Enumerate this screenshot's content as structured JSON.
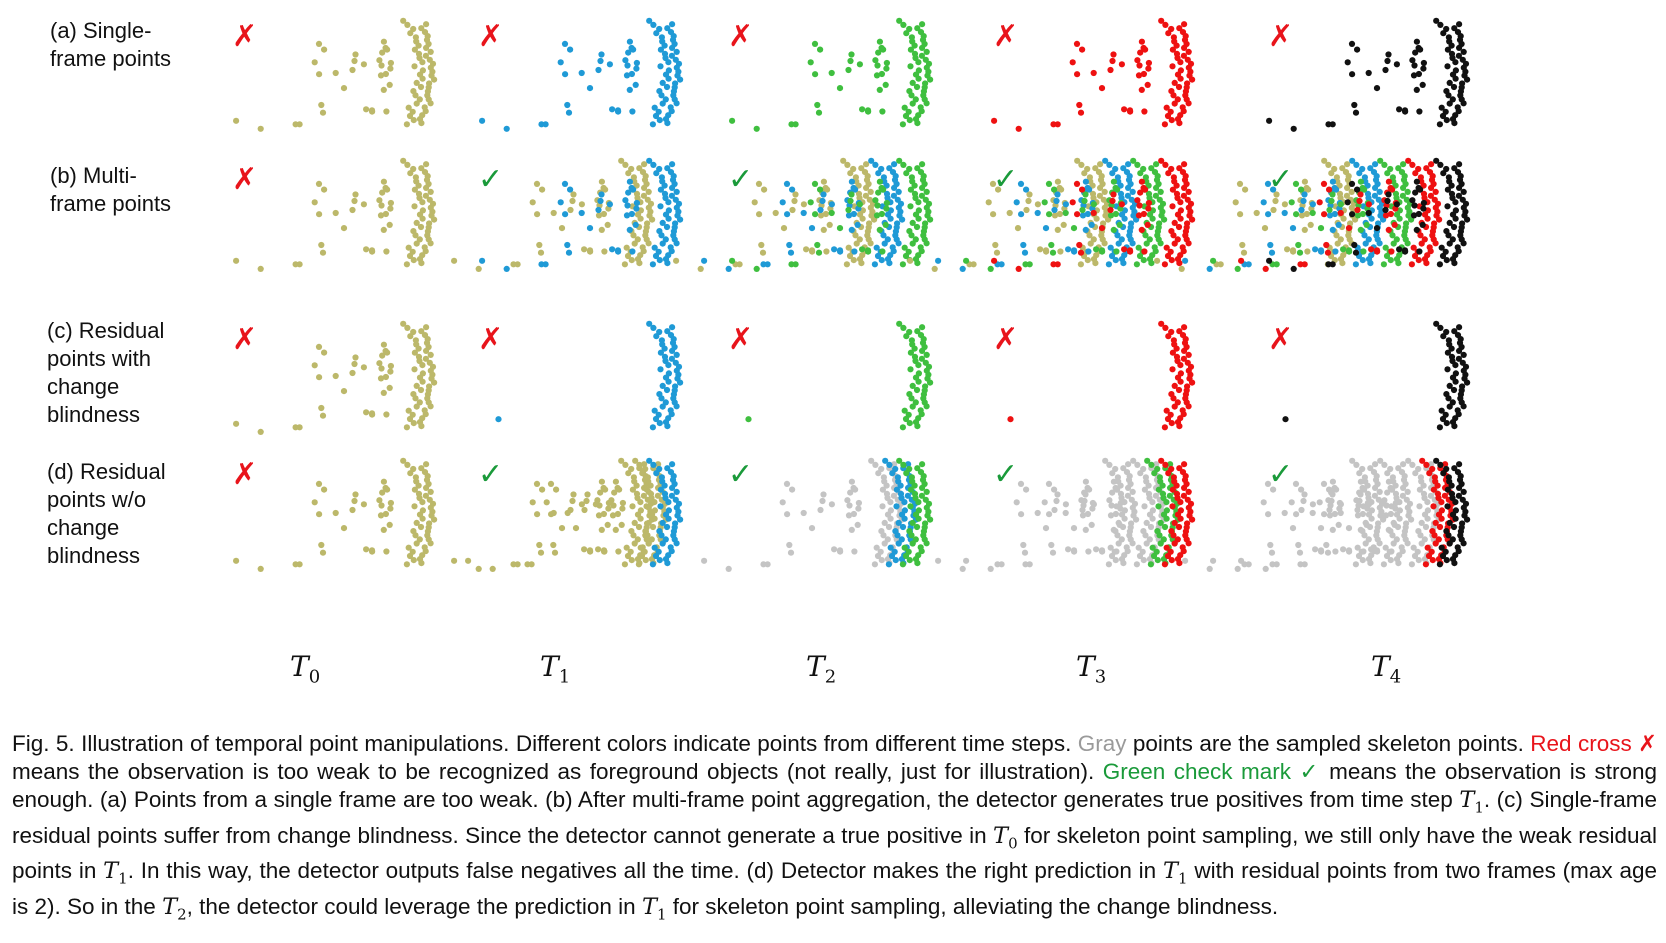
{
  "rows": [
    {
      "label_line1": "(a) Single-",
      "label_line2": "frame points",
      "label_line3": "",
      "label_line4": "",
      "marks": [
        "cross",
        "cross",
        "cross",
        "cross",
        "cross"
      ]
    },
    {
      "label_line1": "(b) Multi-",
      "label_line2": "frame points",
      "label_line3": "",
      "label_line4": "",
      "marks": [
        "cross",
        "check",
        "check",
        "check",
        "check"
      ]
    },
    {
      "label_line1": "(c) Residual",
      "label_line2": "points with",
      "label_line3": "change",
      "label_line4": "blindness",
      "marks": [
        "cross",
        "cross",
        "cross",
        "cross",
        "cross"
      ]
    },
    {
      "label_line1": "(d) Residual",
      "label_line2": "points w/o",
      "label_line3": "change",
      "label_line4": "blindness",
      "marks": [
        "cross",
        "check",
        "check",
        "check",
        "check"
      ]
    }
  ],
  "marks": {
    "cross": "✗",
    "check": "✓"
  },
  "timesteps": [
    {
      "var": "T",
      "sub": "0"
    },
    {
      "var": "T",
      "sub": "1"
    },
    {
      "var": "T",
      "sub": "2"
    },
    {
      "var": "T",
      "sub": "3"
    },
    {
      "var": "T",
      "sub": "4"
    }
  ],
  "colors": {
    "t0": "#bcb86a",
    "t1": "#1f9ad6",
    "t2": "#3fbf3f",
    "t3": "#ee1111",
    "t4": "#111111",
    "gray": "#c4c4c4",
    "cross": "#e8141b",
    "check": "#1a9a3a"
  },
  "caption": {
    "p1": "Fig. 5.  Illustration of temporal point manipulations. Different colors indicate points from different time steps. ",
    "gray_word": "Gray",
    "p2": " points are the sampled skeleton points. ",
    "red_word": "Red cross ✗",
    "p3": " means the observation is too weak to be recognized as foreground objects (not really, just for illustration). ",
    "green_word": "Green check mark ✓",
    "p4": " means the observation is strong enough. (a) Points from a single frame are too weak. (b) After multi-frame point aggregation, the detector generates true positives from time step ",
    "p5": ". (c) Single-frame residual points suffer from change blindness. Since the detector cannot generate a true positive in ",
    "p6": " for skeleton point sampling, we still only have the weak residual points in ",
    "p7": ". In this way, the detector outputs false negatives all the time. (d) Detector makes the right prediction in ",
    "p8": " with residual points from two frames (max age is 2). So in the ",
    "p9": ", the detector could leverage the prediction in ",
    "p10": " for skeleton point sampling, alleviating the change blindness.",
    "m_var": "T",
    "m0": "0",
    "m1": "1",
    "m2": "2"
  }
}
